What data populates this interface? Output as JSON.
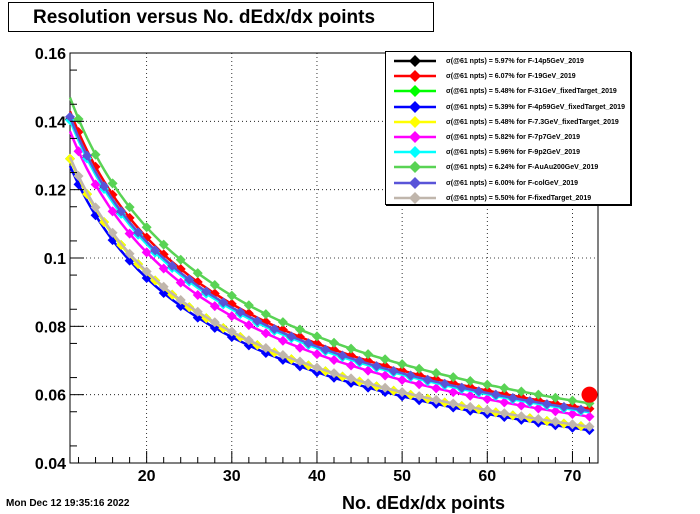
{
  "title": "Resolution versus No. dEdx/dx points",
  "timestamp": "Mon Dec 12 19:35:16 2022",
  "chart_data": {
    "type": "scatter",
    "title": "Resolution versus No. dEdx/dx points",
    "xlabel": "No. dEdx/dx points",
    "ylabel": "",
    "xlim": [
      11,
      73
    ],
    "ylim": [
      0.04,
      0.16
    ],
    "xticks": [
      "20",
      "30",
      "40",
      "50",
      "60",
      "70"
    ],
    "yticks": [
      "0.04",
      "0.06",
      "0.08",
      "0.1",
      "0.12",
      "0.14",
      "0.16"
    ],
    "grid": true,
    "legend_position": "top-right",
    "series": [
      {
        "name": "F-14p5GeV_2019",
        "label": "σ(@61 npts) =  5.97% for F-14p5GeV_2019",
        "color": "#000000",
        "a": 0.4663
      },
      {
        "name": "F-19GeV_2019",
        "label": "σ(@61 npts) =  6.07% for F-19GeV_2019",
        "color": "#ff0000",
        "a": 0.4741
      },
      {
        "name": "F-31GeV_fixedTarget_2019",
        "label": "σ(@61 npts) =  5.48% for F-31GeV_fixedTarget_2019",
        "color": "#00ff00",
        "a": 0.428
      },
      {
        "name": "F-4p59GeV_fixedTarget_2019",
        "label": "σ(@61 npts) =  5.39% for F-4p59GeV_fixedTarget_2019",
        "color": "#0000ff",
        "a": 0.421
      },
      {
        "name": "F-7.3GeV_fixedTarget_2019",
        "label": "σ(@61 npts) =  5.48% for F-7.3GeV_fixedTarget_2019",
        "color": "#ffff00",
        "a": 0.428
      },
      {
        "name": "F-7p7GeV_2019",
        "label": "σ(@61 npts) =  5.82% for F-7p7GeV_2019",
        "color": "#ff00ff",
        "a": 0.4546
      },
      {
        "name": "F-9p2GeV_2019",
        "label": "σ(@61 npts) =  5.96% for F-9p2GeV_2019",
        "color": "#00ffff",
        "a": 0.4655
      },
      {
        "name": "F-AuAu200GeV_2019",
        "label": "σ(@61 npts) =  6.24% for F-AuAu200GeV_2019",
        "color": "#59d354",
        "a": 0.4874
      },
      {
        "name": "F-colGeV_2019",
        "label": "σ(@61 npts) =  6.00% for F-colGeV_2019",
        "color": "#5954d8",
        "a": 0.4686
      },
      {
        "name": "F-fixedTarget_2019",
        "label": "σ(@61 npts) =  5.50% for F-fixedTarget_2019",
        "color": "#c0b6ac",
        "a": 0.4296
      }
    ],
    "model": "y = a / sqrt(x)",
    "x_points": {
      "start": 11,
      "end": 72,
      "step": 1
    },
    "highlight_point": {
      "x": 72,
      "y": 0.06,
      "color": "#ff0000"
    }
  }
}
